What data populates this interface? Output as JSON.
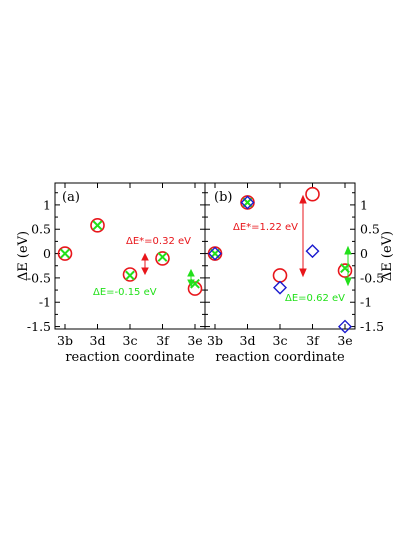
{
  "colors": {
    "red": "#e8161b",
    "green": "#22e01a",
    "blue": "#1a1acf",
    "axis": "#000000"
  },
  "chart_data": [
    {
      "type": "scatter",
      "panel_label": "(a)",
      "categories": [
        "3b",
        "3d",
        "3c",
        "3f",
        "3e"
      ],
      "xlabel": "reaction coordinate",
      "ylabel": "ΔE (eV)",
      "ylim": [
        -1.55,
        1.45
      ],
      "yticks": [
        "-1.5",
        "-1",
        "-0.5",
        "0",
        "0.5",
        "1"
      ],
      "y_axis_side": "left",
      "series": [
        {
          "marker": "circle",
          "color": "red",
          "values": [
            0.0,
            0.58,
            -0.43,
            -0.1,
            -0.72
          ]
        },
        {
          "marker": "x",
          "color": "green",
          "values": [
            0.0,
            0.58,
            -0.45,
            -0.07,
            -0.62
          ]
        }
      ],
      "annotations": [
        {
          "text": "ΔE*=0.32 eV",
          "color": "red"
        },
        {
          "text": "ΔE=-0.15 eV",
          "color": "green"
        }
      ]
    },
    {
      "type": "scatter",
      "panel_label": "(b)",
      "categories": [
        "3b",
        "3d",
        "3c",
        "3f",
        "3e"
      ],
      "xlabel": "reaction coordinate",
      "ylabel": "ΔE (eV)",
      "ylim": [
        -1.55,
        1.45
      ],
      "yticks": [
        "-1.5",
        "-1",
        "-0.5",
        "0",
        "0.5",
        "1"
      ],
      "y_axis_side": "right",
      "series": [
        {
          "marker": "circle",
          "color": "red",
          "values": [
            0.0,
            1.05,
            -0.45,
            1.22,
            -0.35
          ]
        },
        {
          "marker": "x",
          "color": "green",
          "values": [
            0.0,
            1.05,
            null,
            null,
            -0.3
          ]
        },
        {
          "marker": "diamond",
          "color": "blue",
          "values": [
            0.0,
            1.05,
            -0.7,
            0.05,
            -1.5
          ]
        }
      ],
      "annotations": [
        {
          "text": "ΔE*=1.22 eV",
          "color": "red"
        },
        {
          "text": "ΔE=0.62 eV",
          "color": "green"
        }
      ]
    }
  ]
}
